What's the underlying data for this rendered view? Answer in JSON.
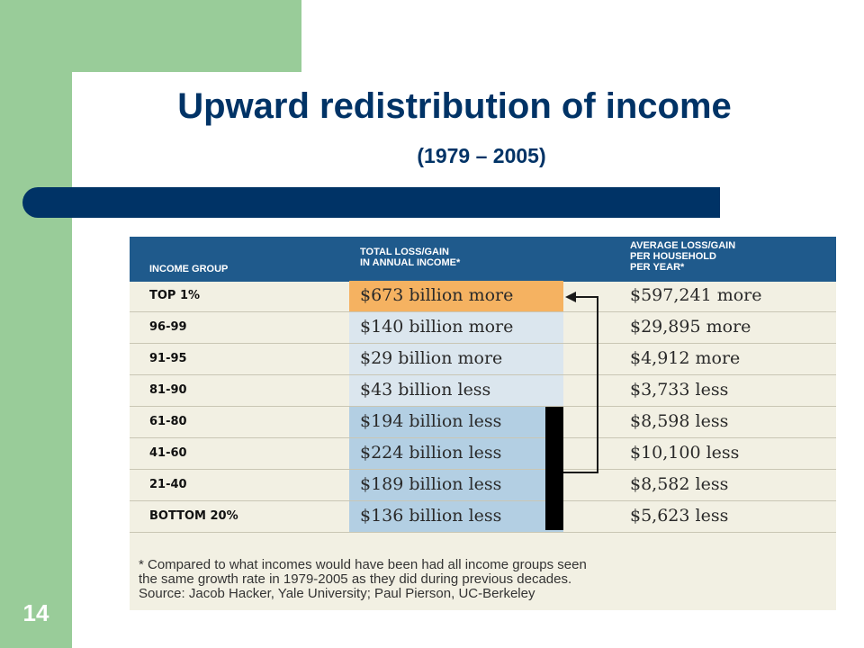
{
  "slide": {
    "title": "Upward redistribution of income",
    "subtitle": "(1979 – 2005)",
    "number": "14"
  },
  "table": {
    "headers": {
      "group": "INCOME GROUP",
      "total_line1": "TOTAL LOSS/GAIN",
      "total_line2": "IN ANNUAL INCOME*",
      "avg_line1": "AVERAGE LOSS/GAIN",
      "avg_line2": "PER HOUSEHOLD",
      "avg_line3": "PER YEAR*"
    },
    "rows": [
      {
        "group": "TOP 1%",
        "total": "$673 billion more",
        "avg": "$597,241 more"
      },
      {
        "group": "96-99",
        "total": "$140 billion more",
        "avg": "$29,895 more"
      },
      {
        "group": "91-95",
        "total": "$29 billion more",
        "avg": "$4,912 more"
      },
      {
        "group": "81-90",
        "total": "$43 billion less",
        "avg": "$3,733 less"
      },
      {
        "group": "61-80",
        "total": "$194 billion less",
        "avg": "$8,598 less"
      },
      {
        "group": "41-60",
        "total": "$224 billion less",
        "avg": "$10,100 less"
      },
      {
        "group": "21-40",
        "total": "$189 billion less",
        "avg": "$8,582 less"
      },
      {
        "group": "BOTTOM 20%",
        "total": "$136 billion less",
        "avg": "$5,623 less"
      }
    ],
    "footnote": {
      "line1": "* Compared to what incomes would have been had all income groups seen",
      "line2": "the same growth rate in 1979-2005 as they did during previous decades.",
      "line3": "Source: Jacob Hacker, Yale University; Paul Pierson, UC-Berkeley"
    }
  },
  "colors": {
    "title": "#003366",
    "band": "#99cc99",
    "header": "#1f5a8c",
    "top_highlight": "#f5b261",
    "gain_cell": "#dbe6ee",
    "loss_cell": "#b3cfe3",
    "panel": "#f2f0e3"
  }
}
